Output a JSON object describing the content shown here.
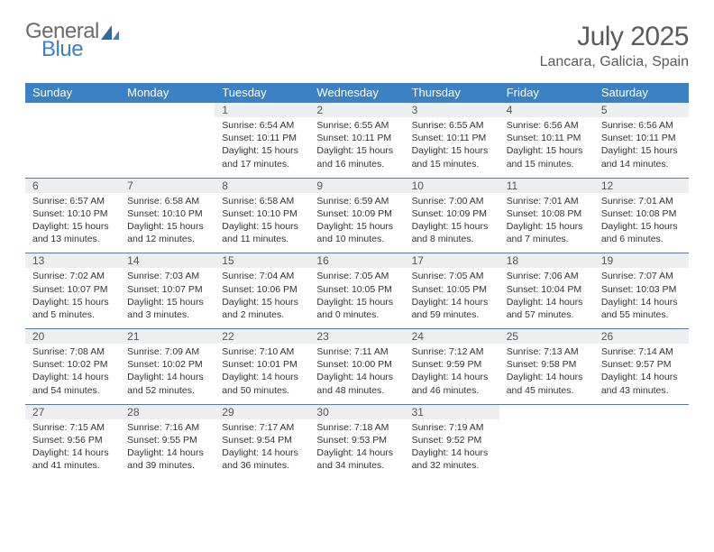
{
  "logo": {
    "top": "General",
    "bottom": "Blue"
  },
  "title": "July 2025",
  "location": "Lancara, Galicia, Spain",
  "colors": {
    "header_bg": "#3b82c4",
    "header_text": "#ffffff",
    "daynum_bg": "#eceef0",
    "row_border": "#5a7a9a",
    "body_text": "#333333",
    "logo_gray": "#6b6b6b",
    "logo_blue": "#3b82c4"
  },
  "fonts": {
    "title_size_pt": 22,
    "location_size_pt": 12,
    "dayheader_size_pt": 10,
    "cell_size_pt": 8
  },
  "day_headers": [
    "Sunday",
    "Monday",
    "Tuesday",
    "Wednesday",
    "Thursday",
    "Friday",
    "Saturday"
  ],
  "weeks": [
    {
      "nums": [
        "",
        "",
        "1",
        "2",
        "3",
        "4",
        "5"
      ],
      "sunrise": [
        "",
        "",
        "Sunrise: 6:54 AM",
        "Sunrise: 6:55 AM",
        "Sunrise: 6:55 AM",
        "Sunrise: 6:56 AM",
        "Sunrise: 6:56 AM"
      ],
      "sunset": [
        "",
        "",
        "Sunset: 10:11 PM",
        "Sunset: 10:11 PM",
        "Sunset: 10:11 PM",
        "Sunset: 10:11 PM",
        "Sunset: 10:11 PM"
      ],
      "day1": [
        "",
        "",
        "Daylight: 15 hours",
        "Daylight: 15 hours",
        "Daylight: 15 hours",
        "Daylight: 15 hours",
        "Daylight: 15 hours"
      ],
      "day2": [
        "",
        "",
        "and 17 minutes.",
        "and 16 minutes.",
        "and 15 minutes.",
        "and 15 minutes.",
        "and 14 minutes."
      ]
    },
    {
      "nums": [
        "6",
        "7",
        "8",
        "9",
        "10",
        "11",
        "12"
      ],
      "sunrise": [
        "Sunrise: 6:57 AM",
        "Sunrise: 6:58 AM",
        "Sunrise: 6:58 AM",
        "Sunrise: 6:59 AM",
        "Sunrise: 7:00 AM",
        "Sunrise: 7:01 AM",
        "Sunrise: 7:01 AM"
      ],
      "sunset": [
        "Sunset: 10:10 PM",
        "Sunset: 10:10 PM",
        "Sunset: 10:10 PM",
        "Sunset: 10:09 PM",
        "Sunset: 10:09 PM",
        "Sunset: 10:08 PM",
        "Sunset: 10:08 PM"
      ],
      "day1": [
        "Daylight: 15 hours",
        "Daylight: 15 hours",
        "Daylight: 15 hours",
        "Daylight: 15 hours",
        "Daylight: 15 hours",
        "Daylight: 15 hours",
        "Daylight: 15 hours"
      ],
      "day2": [
        "and 13 minutes.",
        "and 12 minutes.",
        "and 11 minutes.",
        "and 10 minutes.",
        "and 8 minutes.",
        "and 7 minutes.",
        "and 6 minutes."
      ]
    },
    {
      "nums": [
        "13",
        "14",
        "15",
        "16",
        "17",
        "18",
        "19"
      ],
      "sunrise": [
        "Sunrise: 7:02 AM",
        "Sunrise: 7:03 AM",
        "Sunrise: 7:04 AM",
        "Sunrise: 7:05 AM",
        "Sunrise: 7:05 AM",
        "Sunrise: 7:06 AM",
        "Sunrise: 7:07 AM"
      ],
      "sunset": [
        "Sunset: 10:07 PM",
        "Sunset: 10:07 PM",
        "Sunset: 10:06 PM",
        "Sunset: 10:05 PM",
        "Sunset: 10:05 PM",
        "Sunset: 10:04 PM",
        "Sunset: 10:03 PM"
      ],
      "day1": [
        "Daylight: 15 hours",
        "Daylight: 15 hours",
        "Daylight: 15 hours",
        "Daylight: 15 hours",
        "Daylight: 14 hours",
        "Daylight: 14 hours",
        "Daylight: 14 hours"
      ],
      "day2": [
        "and 5 minutes.",
        "and 3 minutes.",
        "and 2 minutes.",
        "and 0 minutes.",
        "and 59 minutes.",
        "and 57 minutes.",
        "and 55 minutes."
      ]
    },
    {
      "nums": [
        "20",
        "21",
        "22",
        "23",
        "24",
        "25",
        "26"
      ],
      "sunrise": [
        "Sunrise: 7:08 AM",
        "Sunrise: 7:09 AM",
        "Sunrise: 7:10 AM",
        "Sunrise: 7:11 AM",
        "Sunrise: 7:12 AM",
        "Sunrise: 7:13 AM",
        "Sunrise: 7:14 AM"
      ],
      "sunset": [
        "Sunset: 10:02 PM",
        "Sunset: 10:02 PM",
        "Sunset: 10:01 PM",
        "Sunset: 10:00 PM",
        "Sunset: 9:59 PM",
        "Sunset: 9:58 PM",
        "Sunset: 9:57 PM"
      ],
      "day1": [
        "Daylight: 14 hours",
        "Daylight: 14 hours",
        "Daylight: 14 hours",
        "Daylight: 14 hours",
        "Daylight: 14 hours",
        "Daylight: 14 hours",
        "Daylight: 14 hours"
      ],
      "day2": [
        "and 54 minutes.",
        "and 52 minutes.",
        "and 50 minutes.",
        "and 48 minutes.",
        "and 46 minutes.",
        "and 45 minutes.",
        "and 43 minutes."
      ]
    },
    {
      "nums": [
        "27",
        "28",
        "29",
        "30",
        "31",
        "",
        ""
      ],
      "sunrise": [
        "Sunrise: 7:15 AM",
        "Sunrise: 7:16 AM",
        "Sunrise: 7:17 AM",
        "Sunrise: 7:18 AM",
        "Sunrise: 7:19 AM",
        "",
        ""
      ],
      "sunset": [
        "Sunset: 9:56 PM",
        "Sunset: 9:55 PM",
        "Sunset: 9:54 PM",
        "Sunset: 9:53 PM",
        "Sunset: 9:52 PM",
        "",
        ""
      ],
      "day1": [
        "Daylight: 14 hours",
        "Daylight: 14 hours",
        "Daylight: 14 hours",
        "Daylight: 14 hours",
        "Daylight: 14 hours",
        "",
        ""
      ],
      "day2": [
        "and 41 minutes.",
        "and 39 minutes.",
        "and 36 minutes.",
        "and 34 minutes.",
        "and 32 minutes.",
        "",
        ""
      ]
    }
  ]
}
